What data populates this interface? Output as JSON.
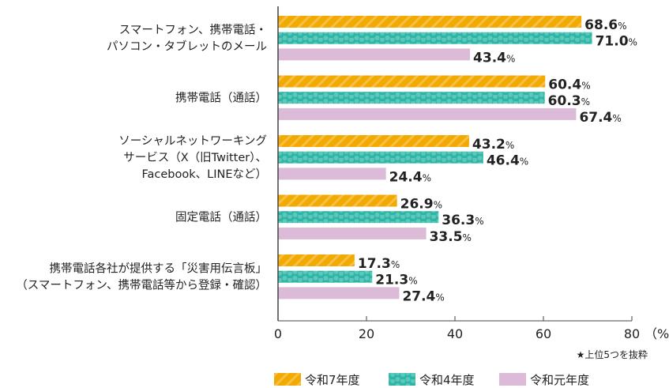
{
  "chart_data": {
    "type": "bar",
    "orientation": "horizontal",
    "categories": [
      [
        "スマートフォン、携帯電話・",
        "パソコン・タブレットのメール"
      ],
      [
        "携帯電話（通話）"
      ],
      [
        "ソーシャルネットワーキング",
        "サービス（X（旧Twitter）、",
        "Facebook、LINEなど）"
      ],
      [
        "固定電話（通話）"
      ],
      [
        "携帯電話各社が提供する「災害用伝言板」",
        "（スマートフォン、携帯電話等から登録・確認）"
      ]
    ],
    "series": [
      {
        "name": "令和7年度",
        "values": [
          68.6,
          60.4,
          43.2,
          26.9,
          17.3
        ],
        "color": "#f2a900",
        "pattern": "stripes"
      },
      {
        "name": "令和4年度",
        "values": [
          71.0,
          60.3,
          46.4,
          36.3,
          21.3
        ],
        "color": "#2db5a5",
        "pattern": "dots"
      },
      {
        "name": "令和元年度",
        "values": [
          43.4,
          67.4,
          24.4,
          33.5,
          27.4
        ],
        "color": "#dbbbd8",
        "pattern": "solid"
      }
    ],
    "unit": "%",
    "xlim": [
      0,
      80
    ],
    "xticks": [
      "0",
      "20",
      "40",
      "60",
      "80"
    ],
    "xunit_label": "（%）",
    "note": "★上位5つを抜粋",
    "legend_position": "bottom"
  }
}
